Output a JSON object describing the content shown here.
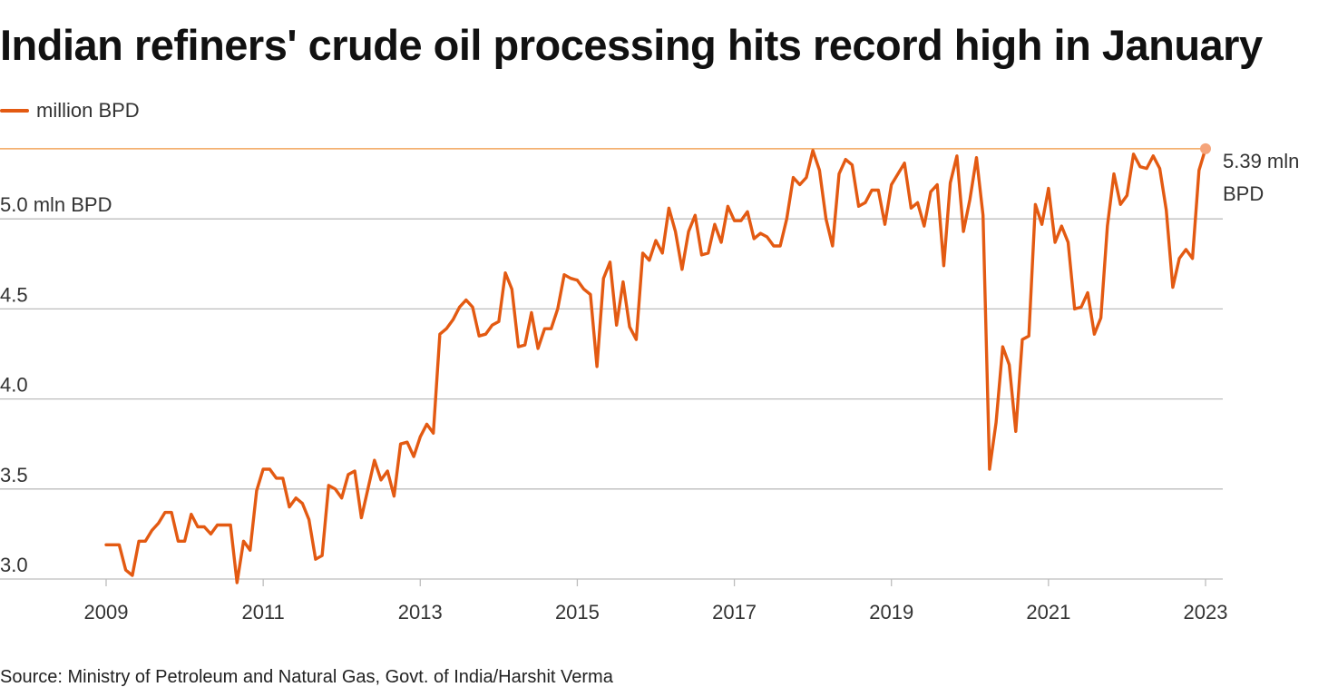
{
  "colors": {
    "line": "#e35a12",
    "max_line": "#f2a45c",
    "max_dot": "#f5a47a",
    "grid": "#bdbdbd",
    "axis_text": "#333333"
  },
  "footer": {
    "source": "Source: Ministry of Petroleum and Natural Gas, Govt. of India/Harshit Verma"
  },
  "chart_data": {
    "type": "line",
    "title": "Indian refiners' crude oil processing hits record high in January",
    "legend": {
      "position": "top-left",
      "entries": [
        "million BPD"
      ]
    },
    "xlabel": "",
    "ylabel": "",
    "grid": true,
    "ylim": [
      3.0,
      5.39
    ],
    "y_ticks": [
      {
        "value": 3.0,
        "label": "3.0"
      },
      {
        "value": 3.5,
        "label": "3.5"
      },
      {
        "value": 4.0,
        "label": "4.0"
      },
      {
        "value": 4.5,
        "label": "4.5"
      },
      {
        "value": 5.0,
        "label": "5.0 mln BPD"
      }
    ],
    "x_ticks": [
      "2009",
      "2011",
      "2013",
      "2015",
      "2017",
      "2019",
      "2021",
      "2023"
    ],
    "annotation": {
      "value": 5.39,
      "lines": [
        "5.39 mln",
        "BPD"
      ]
    },
    "series": [
      {
        "name": "million BPD",
        "start": "2009-01",
        "values": [
          3.19,
          3.19,
          3.19,
          3.05,
          3.02,
          3.21,
          3.21,
          3.27,
          3.31,
          3.37,
          3.37,
          3.21,
          3.21,
          3.36,
          3.29,
          3.29,
          3.25,
          3.3,
          3.3,
          3.3,
          2.98,
          3.21,
          3.16,
          3.49,
          3.61,
          3.61,
          3.56,
          3.56,
          3.4,
          3.45,
          3.42,
          3.33,
          3.11,
          3.13,
          3.52,
          3.5,
          3.45,
          3.58,
          3.6,
          3.34,
          3.5,
          3.66,
          3.55,
          3.6,
          3.46,
          3.75,
          3.76,
          3.68,
          3.79,
          3.86,
          3.81,
          4.36,
          4.39,
          4.44,
          4.51,
          4.55,
          4.51,
          4.35,
          4.36,
          4.41,
          4.43,
          4.7,
          4.61,
          4.29,
          4.3,
          4.48,
          4.28,
          4.39,
          4.39,
          4.5,
          4.69,
          4.67,
          4.66,
          4.61,
          4.58,
          4.18,
          4.67,
          4.76,
          4.41,
          4.65,
          4.4,
          4.33,
          4.81,
          4.77,
          4.88,
          4.81,
          5.06,
          4.93,
          4.72,
          4.93,
          5.02,
          4.8,
          4.81,
          4.97,
          4.87,
          5.07,
          4.99,
          4.99,
          5.04,
          4.89,
          4.92,
          4.9,
          4.85,
          4.85,
          5.0,
          5.23,
          5.19,
          5.23,
          5.38,
          5.27,
          5.0,
          4.85,
          5.25,
          5.33,
          5.3,
          5.07,
          5.09,
          5.16,
          5.16,
          4.97,
          5.19,
          5.25,
          5.31,
          5.06,
          5.09,
          4.96,
          5.15,
          5.19,
          4.74,
          5.2,
          5.35,
          4.93,
          5.11,
          5.34,
          5.02,
          3.61,
          3.87,
          4.29,
          4.19,
          3.82,
          4.33,
          4.35,
          5.08,
          4.97,
          5.17,
          4.87,
          4.96,
          4.87,
          4.5,
          4.51,
          4.59,
          4.36,
          4.45,
          4.96,
          5.25,
          5.08,
          5.13,
          5.36,
          5.29,
          5.28,
          5.35,
          5.28,
          5.05,
          4.62,
          4.78,
          4.83,
          4.78,
          5.27,
          5.39
        ]
      }
    ]
  }
}
